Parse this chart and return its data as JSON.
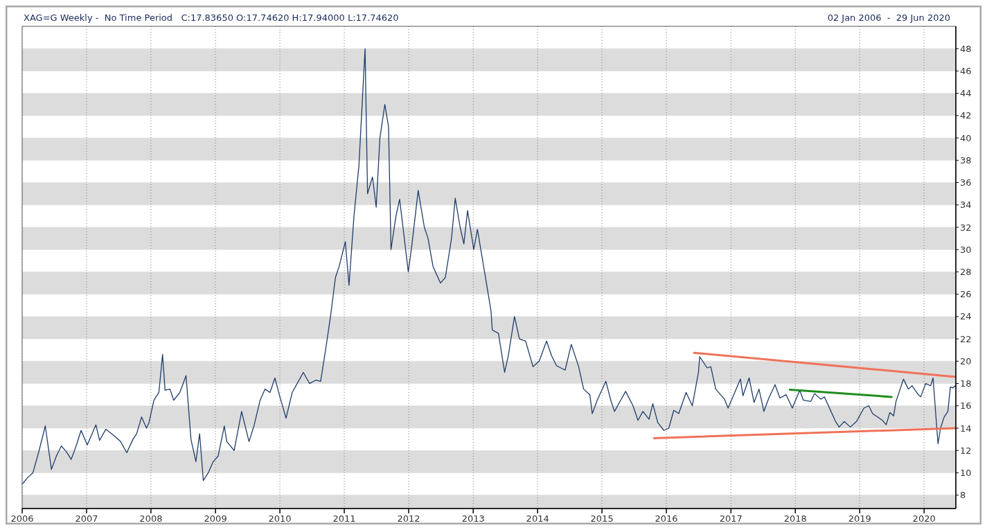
{
  "chart_data": {
    "type": "line",
    "title": "XAG=G Weekly -  No Time Period   C:17.83650 O:17.74620 H:17.94000 L:17.74620",
    "subtitle": "02 Jan 2006  -  29 Jun 2020",
    "xlim": [
      "2006-01-01",
      "2020-06-29"
    ],
    "xticks": [
      {
        "value": "2006-01-01",
        "label": "2006"
      },
      {
        "value": "2007-01-01",
        "label": "2007"
      },
      {
        "value": "2008-01-01",
        "label": "2008"
      },
      {
        "value": "2009-01-01",
        "label": "2009"
      },
      {
        "value": "2010-01-01",
        "label": "2010"
      },
      {
        "value": "2011-01-01",
        "label": "2011"
      },
      {
        "value": "2012-01-01",
        "label": "2012"
      },
      {
        "value": "2013-01-01",
        "label": "2013"
      },
      {
        "value": "2014-01-01",
        "label": "2014"
      },
      {
        "value": "2015-01-01",
        "label": "2015"
      },
      {
        "value": "2016-01-01",
        "label": "2016"
      },
      {
        "value": "2017-01-01",
        "label": "2017"
      },
      {
        "value": "2018-01-01",
        "label": "2018"
      },
      {
        "value": "2019-01-01",
        "label": "2019"
      },
      {
        "value": "2020-01-01",
        "label": "2020"
      }
    ],
    "bands": [
      {
        "axis": "y",
        "from": 46,
        "to": 48,
        "color": "#dcdcdc"
      },
      {
        "axis": "y",
        "from": 42,
        "to": 44,
        "color": "#dcdcdc"
      },
      {
        "axis": "y",
        "from": 38,
        "to": 40,
        "color": "#dcdcdc"
      },
      {
        "axis": "y",
        "from": 34,
        "to": 36,
        "color": "#dcdcdc"
      },
      {
        "axis": "y",
        "from": 30,
        "to": 32,
        "color": "#dcdcdc"
      },
      {
        "axis": "y",
        "from": 26,
        "to": 28,
        "color": "#dcdcdc"
      },
      {
        "axis": "y",
        "from": 22,
        "to": 24,
        "color": "#dcdcdc"
      },
      {
        "axis": "y",
        "from": 18,
        "to": 20,
        "color": "#dcdcdc"
      },
      {
        "axis": "y",
        "from": 14,
        "to": 16,
        "color": "#dcdcdc"
      },
      {
        "axis": "y",
        "from": 10,
        "to": 12,
        "color": "#dcdcdc"
      },
      {
        "axis": "y",
        "from": 6.8,
        "to": 8,
        "color": "#dcdcdc"
      }
    ],
    "ylim": [
      6.8,
      50
    ],
    "yticks": [
      8,
      10,
      12,
      14,
      16,
      18,
      20,
      22,
      24,
      26,
      28,
      30,
      32,
      34,
      36,
      38,
      40,
      42,
      44,
      46,
      48
    ],
    "grid": true,
    "series": [
      {
        "color": "#1f3d6b",
        "x": [
          "2006-01-02",
          "2006-02-03",
          "2006-03-03",
          "2006-04-07",
          "2006-05-12",
          "2006-06-16",
          "2006-07-14",
          "2006-08-11",
          "2006-09-08",
          "2006-10-06",
          "2006-11-03",
          "2006-12-01",
          "2007-01-05",
          "2007-02-23",
          "2007-03-16",
          "2007-04-20",
          "2007-06-08",
          "2007-07-13",
          "2007-08-17",
          "2007-09-21",
          "2007-10-12",
          "2007-11-09",
          "2007-12-07",
          "2007-12-21",
          "2008-01-18",
          "2008-02-15",
          "2008-03-07",
          "2008-03-21",
          "2008-04-18",
          "2008-05-09",
          "2008-06-13",
          "2008-07-18",
          "2008-08-15",
          "2008-09-12",
          "2008-10-03",
          "2008-10-24",
          "2008-11-21",
          "2008-12-19",
          "2009-01-16",
          "2009-02-20",
          "2009-03-06",
          "2009-04-17",
          "2009-05-29",
          "2009-07-10",
          "2009-08-07",
          "2009-09-11",
          "2009-10-09",
          "2009-11-06",
          "2009-12-04",
          "2009-12-25",
          "2010-02-05",
          "2010-03-12",
          "2010-04-16",
          "2010-05-14",
          "2010-06-18",
          "2010-07-23",
          "2010-08-20",
          "2010-09-17",
          "2010-10-15",
          "2010-11-12",
          "2010-12-03",
          "2011-01-07",
          "2011-01-28",
          "2011-02-25",
          "2011-03-25",
          "2011-04-29",
          "2011-05-13",
          "2011-06-10",
          "2011-07-01",
          "2011-07-22",
          "2011-08-19",
          "2011-09-09",
          "2011-09-23",
          "2011-10-21",
          "2011-11-11",
          "2011-12-30",
          "2012-01-20",
          "2012-02-24",
          "2012-03-30",
          "2012-04-20",
          "2012-05-18",
          "2012-06-29",
          "2012-07-27",
          "2012-08-31",
          "2012-09-21",
          "2012-10-19",
          "2012-11-09",
          "2012-11-30",
          "2013-01-04",
          "2013-01-25",
          "2013-03-01",
          "2013-04-12",
          "2013-04-19",
          "2013-05-24",
          "2013-06-28",
          "2013-07-19",
          "2013-08-23",
          "2013-09-20",
          "2013-10-25",
          "2013-12-06",
          "2014-01-10",
          "2014-02-21",
          "2014-03-21",
          "2014-04-18",
          "2014-06-06",
          "2014-07-11",
          "2014-08-22",
          "2014-09-19",
          "2014-10-24",
          "2014-11-07",
          "2014-12-05",
          "2015-01-23",
          "2015-02-20",
          "2015-03-13",
          "2015-04-17",
          "2015-05-15",
          "2015-06-26",
          "2015-07-24",
          "2015-08-21",
          "2015-09-25",
          "2015-10-16",
          "2015-11-13",
          "2015-12-18",
          "2016-01-15",
          "2016-02-12",
          "2016-03-11",
          "2016-04-22",
          "2016-05-27",
          "2016-07-01",
          "2016-07-08",
          "2016-08-19",
          "2016-09-09",
          "2016-10-07",
          "2016-11-25",
          "2016-12-16",
          "2017-02-24",
          "2017-03-10",
          "2017-04-14",
          "2017-05-12",
          "2017-06-09",
          "2017-07-07",
          "2017-08-04",
          "2017-09-08",
          "2017-10-06",
          "2017-11-10",
          "2017-12-15",
          "2018-01-26",
          "2018-02-16",
          "2018-03-30",
          "2018-04-20",
          "2018-05-25",
          "2018-06-15",
          "2018-08-17",
          "2018-09-07",
          "2018-10-05",
          "2018-11-09",
          "2018-12-14",
          "2019-01-25",
          "2019-02-22",
          "2019-03-15",
          "2019-05-10",
          "2019-05-31",
          "2019-06-21",
          "2019-07-12",
          "2019-07-26",
          "2019-09-06",
          "2019-10-04",
          "2019-10-25",
          "2019-11-29",
          "2019-12-13",
          "2020-01-10",
          "2020-02-07",
          "2020-02-21",
          "2020-03-13",
          "2020-03-20",
          "2020-04-03",
          "2020-04-24",
          "2020-05-15",
          "2020-05-29",
          "2020-06-12",
          "2020-06-26"
        ],
        "values": [
          9.0,
          9.6,
          10.0,
          12.0,
          14.2,
          10.3,
          11.5,
          12.4,
          11.9,
          11.2,
          12.4,
          13.8,
          12.5,
          14.3,
          12.9,
          13.9,
          13.3,
          12.8,
          11.8,
          13.0,
          13.5,
          15.0,
          14.0,
          14.5,
          16.5,
          17.2,
          20.6,
          17.4,
          17.5,
          16.5,
          17.2,
          18.7,
          13.0,
          11.0,
          13.5,
          9.3,
          10.0,
          11.0,
          11.5,
          14.2,
          12.8,
          12.0,
          15.5,
          12.8,
          14.2,
          16.5,
          17.5,
          17.2,
          18.5,
          17.2,
          14.9,
          17.2,
          18.2,
          19.0,
          18.0,
          18.3,
          18.2,
          21.0,
          24.0,
          27.5,
          28.5,
          30.7,
          26.8,
          33.0,
          37.5,
          48.0,
          35.0,
          36.5,
          33.8,
          40.0,
          43.0,
          41.0,
          30.0,
          33.0,
          34.5,
          28.0,
          30.5,
          35.3,
          32.0,
          31.0,
          28.5,
          27.0,
          27.5,
          31.0,
          34.6,
          32.0,
          30.5,
          33.5,
          30.0,
          31.8,
          28.5,
          24.5,
          22.8,
          22.5,
          19.0,
          20.5,
          24.0,
          22.0,
          21.8,
          19.5,
          20.0,
          21.8,
          20.5,
          19.6,
          19.2,
          21.5,
          19.5,
          17.5,
          17.0,
          15.3,
          16.5,
          18.2,
          16.5,
          15.5,
          16.5,
          17.3,
          16.0,
          14.7,
          15.5,
          14.8,
          16.2,
          14.5,
          13.8,
          14.0,
          15.6,
          15.3,
          17.2,
          16.0,
          19.0,
          20.4,
          19.4,
          19.5,
          17.5,
          16.6,
          15.8,
          18.4,
          16.9,
          18.5,
          16.3,
          17.5,
          15.5,
          16.7,
          17.9,
          16.7,
          17.0,
          15.8,
          17.4,
          16.5,
          16.4,
          17.1,
          16.6,
          16.8,
          14.6,
          14.1,
          14.6,
          14.1,
          14.6,
          15.8,
          16.0,
          15.3,
          14.7,
          14.3,
          15.4,
          15.1,
          16.4,
          18.4,
          17.5,
          17.8,
          17.0,
          16.8,
          18.0,
          17.8,
          18.5,
          14.0,
          12.6,
          14.0,
          15.0,
          15.5,
          17.7,
          17.6,
          17.8
        ]
      },
      {
        "color": "#f07258",
        "x": [
          "2016-06-06",
          "2020-06-29"
        ],
        "values": [
          20.75,
          18.6
        ]
      },
      {
        "color": "#f07258",
        "x": [
          "2015-10-23",
          "2020-06-29"
        ],
        "values": [
          13.1,
          14.0
        ]
      },
      {
        "color": "#1e8c1e",
        "x": [
          "2017-12-01",
          "2019-07-01"
        ],
        "values": [
          17.45,
          16.8
        ]
      }
    ]
  }
}
